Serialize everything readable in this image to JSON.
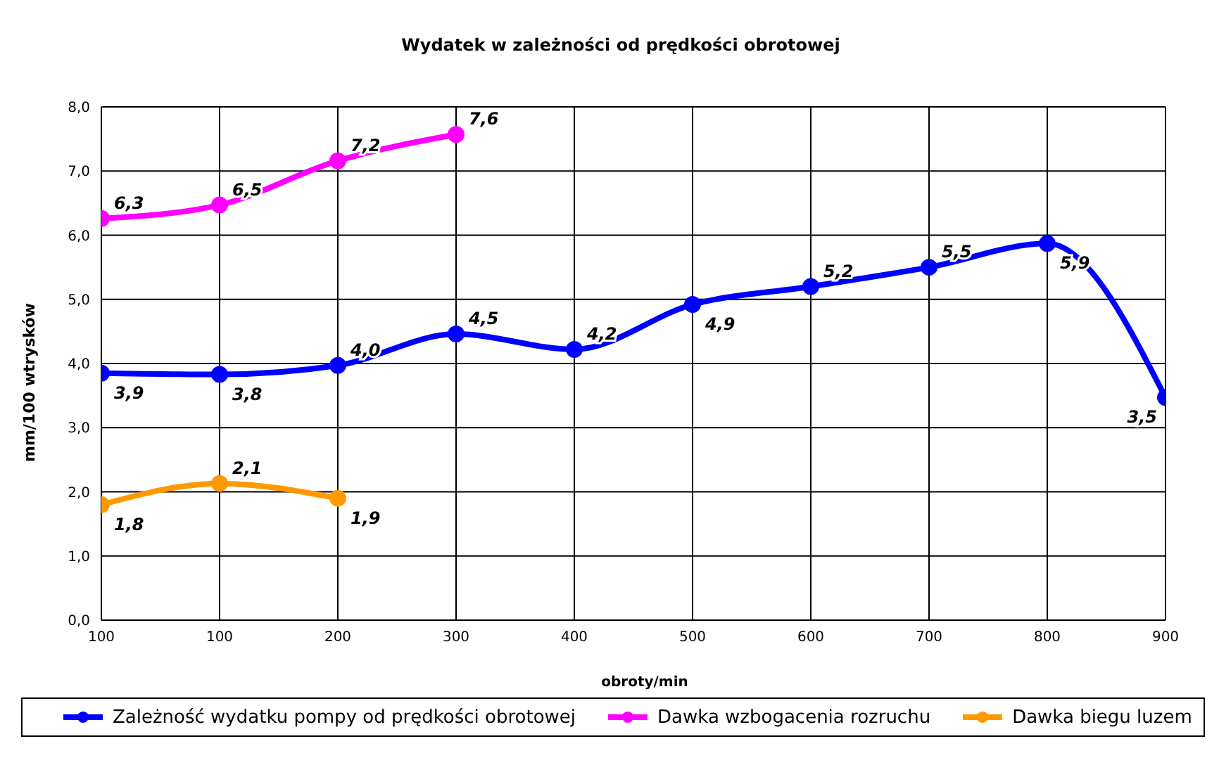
{
  "chart_data": {
    "type": "line",
    "title": "Wydatek w zależności od prędkości obrotowej",
    "xlabel": "obroty/min",
    "ylabel": "mm/100 wtrysków",
    "categories": [
      "100",
      "100",
      "200",
      "300",
      "400",
      "500",
      "600",
      "700",
      "800",
      "900"
    ],
    "series": [
      {
        "name": "Zależność wydatku pompy od prędkości obrotowej",
        "color": "#0000ff",
        "values": [
          3.85,
          3.83,
          3.97,
          4.46,
          4.22,
          4.92,
          5.2,
          5.5,
          5.87,
          3.47
        ],
        "value_labels": [
          "3,9",
          "3,8",
          "4,0",
          "4,5",
          "4,2",
          "4,9",
          "5,2",
          "5,5",
          "5,9",
          "3,5"
        ]
      },
      {
        "name": "Dawka wzbogacenia rozruchu",
        "color": "#ff00ff",
        "values": [
          6.26,
          6.47,
          7.16,
          7.57,
          null,
          null,
          null,
          null,
          null,
          null
        ],
        "value_labels": [
          "6,3",
          "6,5",
          "7,2",
          "7,6",
          null,
          null,
          null,
          null,
          null,
          null
        ]
      },
      {
        "name": "Dawka biegu luzem",
        "color": "#ff9900",
        "values": [
          1.8,
          2.13,
          1.9,
          null,
          null,
          null,
          null,
          null,
          null,
          null
        ],
        "value_labels": [
          "1,8",
          "2,1",
          "1,9",
          null,
          null,
          null,
          null,
          null,
          null,
          null
        ]
      }
    ],
    "ylim": [
      0,
      8
    ],
    "yticks": [
      {
        "value": 0,
        "label": "0,0"
      },
      {
        "value": 1,
        "label": "1,0"
      },
      {
        "value": 2,
        "label": "2,0"
      },
      {
        "value": 3,
        "label": "3,0"
      },
      {
        "value": 4,
        "label": "4,0"
      },
      {
        "value": 5,
        "label": "5,0"
      },
      {
        "value": 6,
        "label": "6,0"
      },
      {
        "value": 7,
        "label": "7,0"
      },
      {
        "value": 8,
        "label": "8,0"
      }
    ],
    "grid": true,
    "legend": "bottom",
    "marker": "circle",
    "line_style": "solid"
  }
}
